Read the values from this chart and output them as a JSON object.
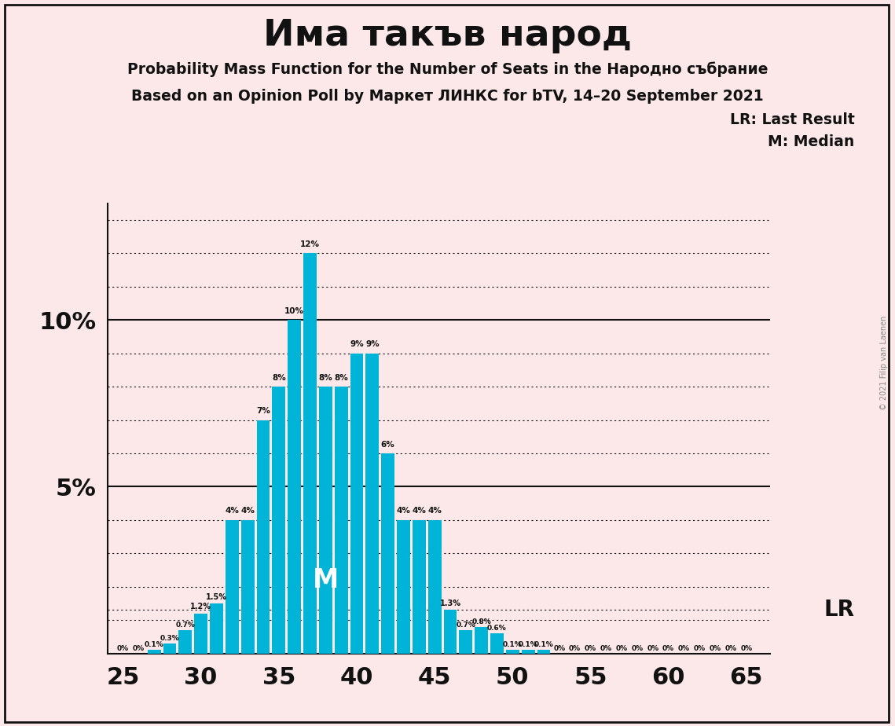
{
  "seats": [
    25,
    26,
    27,
    28,
    29,
    30,
    31,
    32,
    33,
    34,
    35,
    36,
    37,
    38,
    39,
    40,
    41,
    42,
    43,
    44,
    45,
    46,
    47,
    48,
    49,
    50,
    51,
    52,
    53,
    54,
    55,
    56,
    57,
    58,
    59,
    60,
    61,
    62,
    63,
    64,
    65
  ],
  "probs": [
    0.0,
    0.0,
    0.1,
    0.3,
    0.7,
    1.2,
    1.5,
    4.0,
    4.0,
    7.0,
    8.0,
    10.0,
    12.0,
    8.0,
    8.0,
    9.0,
    9.0,
    6.0,
    4.0,
    4.0,
    4.0,
    1.3,
    0.7,
    0.8,
    0.6,
    0.1,
    0.1,
    0.1,
    0.0,
    0.0,
    0.0,
    0.0,
    0.0,
    0.0,
    0.0,
    0.0,
    0.0,
    0.0,
    0.0,
    0.0,
    0.0
  ],
  "bar_color": "#00b4d8",
  "bg_color": "#fce8e8",
  "title": "Има такъв народ",
  "subtitle1": "Probability Mass Function for the Number of Seats in the Народно събрание",
  "subtitle2": "Based on an Opinion Poll by Маркет ЛИНКС for bTV, 14–20 September 2021",
  "watermark": "© 2021 Filip van Laenen",
  "lr_seat": 46,
  "lr_prob": 1.3,
  "median_seat": 38,
  "ylim_max": 13.5,
  "bar_labels": {
    "25": "0%",
    "26": "0%",
    "27": "0.1%",
    "28": "0.3%",
    "29": "0.7%",
    "30": "1.2%",
    "31": "1.5%",
    "32": "4%",
    "33": "4%",
    "34": "7%",
    "35": "8%",
    "36": "10%",
    "37": "12%",
    "38": "8%",
    "39": "8%",
    "40": "9%",
    "41": "9%",
    "42": "6%",
    "43": "4%",
    "44": "4%",
    "45": "4%",
    "46": "1.3%",
    "47": "0.7%",
    "48": "0.8%",
    "49": "0.6%",
    "50": "0.1%",
    "51": "0.1%",
    "52": "0.1%",
    "53": "0%",
    "54": "0%",
    "55": "0%",
    "56": "0%",
    "57": "0%",
    "58": "0%",
    "59": "0%",
    "60": "0%",
    "61": "0%",
    "62": "0%",
    "63": "0%",
    "64": "0%",
    "65": "0%"
  }
}
